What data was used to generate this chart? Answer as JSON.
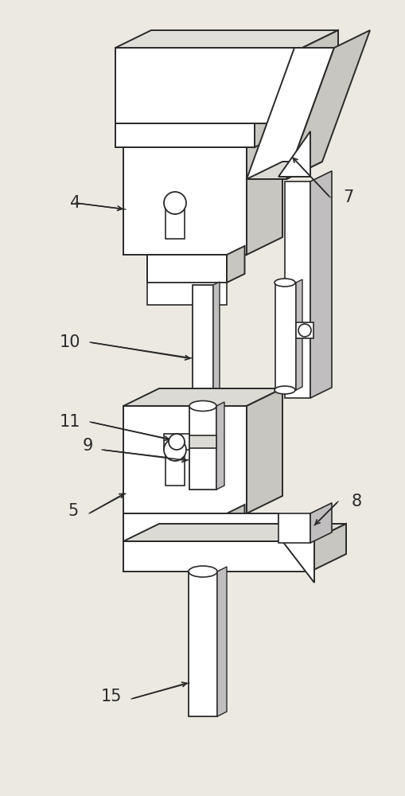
{
  "background_color": "#ece9e3",
  "line_color": "#2a2a2a",
  "label_color": "#2a2a2a",
  "lw": 1.4,
  "fig_width": 5.09,
  "fig_height": 10.0,
  "dpi": 100
}
